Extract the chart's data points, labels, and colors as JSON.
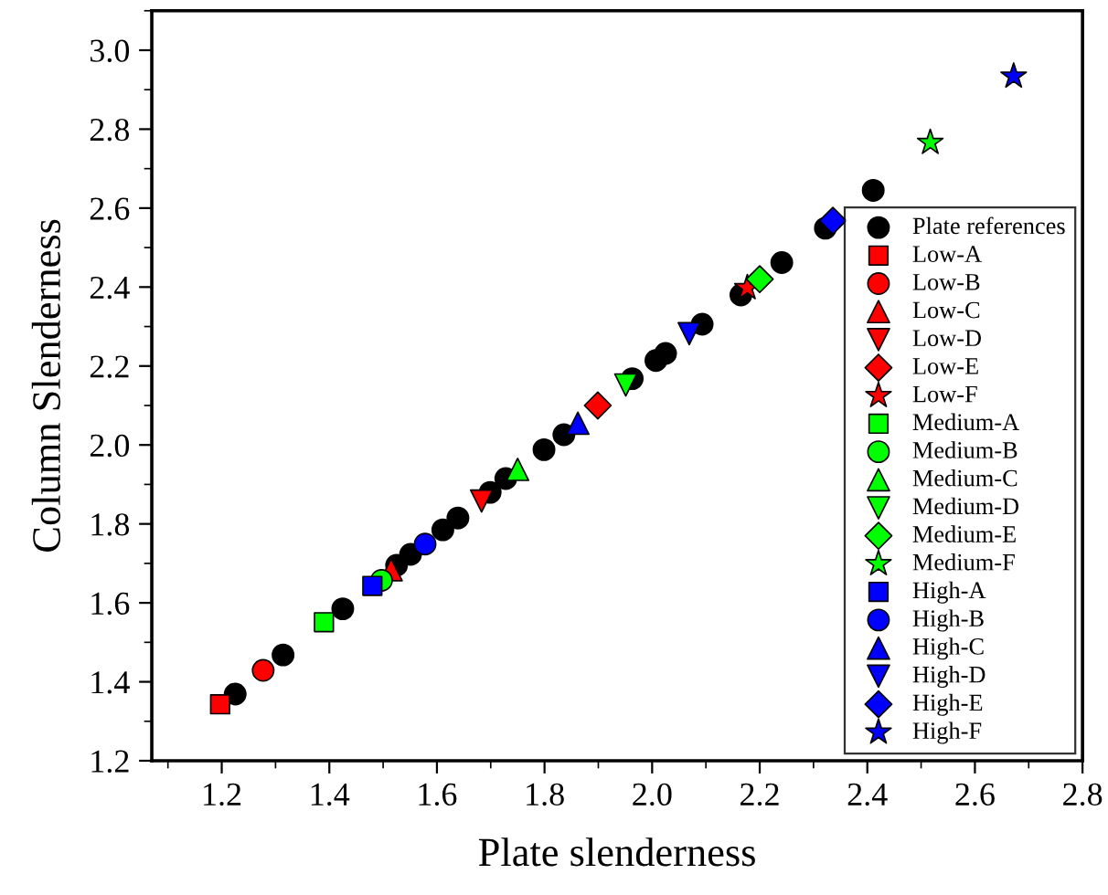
{
  "chart_data": {
    "type": "scatter",
    "xlabel": "Plate slenderness",
    "ylabel": "Column Slenderness",
    "xlim": [
      1.07,
      2.8
    ],
    "ylim": [
      1.2,
      3.1
    ],
    "xticks": [
      1.2,
      1.4,
      1.6,
      1.8,
      {
        "value": 2,
        "label": "2.0"
      },
      2.2,
      2.4,
      2.6,
      2.8
    ],
    "yticks": [
      1.2,
      1.4,
      1.6,
      1.8,
      {
        "value": 2,
        "label": "2.0"
      },
      2.2,
      2.4,
      2.6,
      2.8,
      {
        "value": 3,
        "label": "3.0"
      }
    ],
    "grid": false,
    "legend": "lower right",
    "series": [
      {
        "name": "Plate references",
        "color": "#000000",
        "marker": "circle",
        "x": [
          1.225,
          1.314,
          1.425,
          1.49,
          1.525,
          1.551,
          1.611,
          1.639,
          1.699,
          1.728,
          1.799,
          1.836,
          1.963,
          2.007,
          2.025,
          2.093,
          2.165,
          2.241,
          2.322,
          2.411
        ],
        "values": [
          1.369,
          1.468,
          1.585,
          null,
          1.695,
          1.723,
          1.785,
          1.815,
          1.88,
          1.915,
          1.988,
          2.026,
          2.168,
          2.214,
          2.232,
          2.306,
          2.38,
          2.462,
          2.549,
          2.645
        ]
      },
      {
        "name": "Low-A",
        "color": "#ff0000",
        "marker": "square",
        "x": [
          1.197
        ],
        "values": [
          1.343
        ]
      },
      {
        "name": "Low-B",
        "color": "#ff0000",
        "marker": "circle",
        "x": [
          1.277
        ],
        "values": [
          1.429
        ]
      },
      {
        "name": "Low-C",
        "color": "#ff0000",
        "marker": "triangle",
        "x": [
          1.515
        ],
        "values": [
          1.684
        ]
      },
      {
        "name": "Low-D",
        "color": "#ff0000",
        "marker": "triangle_down",
        "x": [
          1.683
        ],
        "values": [
          1.858
        ]
      },
      {
        "name": "Low-E",
        "color": "#ff0000",
        "marker": "diamond",
        "x": [
          1.899
        ],
        "values": [
          2.1
        ]
      },
      {
        "name": "Low-F",
        "color": "#ff0000",
        "marker": "star",
        "x": [
          2.177
        ],
        "values": [
          2.398
        ]
      },
      {
        "name": "Medium-A",
        "color": "#00ff00",
        "marker": "square",
        "x": [
          1.39
        ],
        "values": [
          1.551
        ]
      },
      {
        "name": "Medium-B",
        "color": "#00ff00",
        "marker": "circle",
        "x": [
          1.497
        ],
        "values": [
          1.657
        ]
      },
      {
        "name": "Medium-C",
        "color": "#00ff00",
        "marker": "triangle",
        "x": [
          1.75
        ],
        "values": [
          1.938
        ]
      },
      {
        "name": "Medium-D",
        "color": "#00ff00",
        "marker": "triangle_down",
        "x": [
          1.951
        ],
        "values": [
          2.152
        ]
      },
      {
        "name": "Medium-E",
        "color": "#00ff00",
        "marker": "diamond",
        "x": [
          2.2
        ],
        "values": [
          2.42
        ]
      },
      {
        "name": "Medium-F",
        "color": "#00ff00",
        "marker": "star",
        "x": [
          2.517
        ],
        "values": [
          2.766
        ]
      },
      {
        "name": "High-A",
        "color": "#0000ff",
        "marker": "square",
        "x": [
          1.48
        ],
        "values": [
          1.643
        ]
      },
      {
        "name": "High-B",
        "color": "#0000ff",
        "marker": "circle",
        "x": [
          1.578
        ],
        "values": [
          1.749
        ]
      },
      {
        "name": "High-C",
        "color": "#0000ff",
        "marker": "triangle",
        "x": [
          1.862
        ],
        "values": [
          2.055
        ]
      },
      {
        "name": "High-D",
        "color": "#0000ff",
        "marker": "triangle_down",
        "x": [
          2.069
        ],
        "values": [
          2.282
        ]
      },
      {
        "name": "High-E",
        "color": "#0000ff",
        "marker": "diamond",
        "x": [
          2.336
        ],
        "values": [
          2.568
        ]
      },
      {
        "name": "High-F",
        "color": "#0000ff",
        "marker": "star",
        "x": [
          2.672
        ],
        "values": [
          2.934
        ]
      }
    ]
  }
}
